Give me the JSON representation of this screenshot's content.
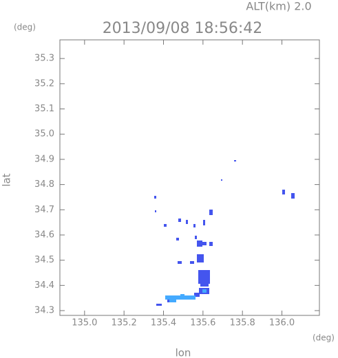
{
  "chart_data": {
    "type": "map",
    "title": "2013/09/08 18:56:42",
    "annotation": "ALT(km) 2.0",
    "x_label": "lon",
    "y_label": "lat",
    "x_unit": "(deg)",
    "y_unit": "(deg)",
    "xlim": [
      134.875,
      136.19
    ],
    "ylim": [
      34.281,
      35.374
    ],
    "xticks": [
      {
        "value": 135,
        "label": "135.0"
      },
      135.2,
      135.4,
      135.6,
      135.8,
      {
        "value": 136,
        "label": "136.0"
      }
    ],
    "yticks": [
      34.3,
      34.4,
      34.5,
      34.6,
      34.7,
      34.8,
      34.9,
      {
        "value": 35,
        "label": "35.0"
      },
      35.1,
      35.2,
      35.3
    ]
  }
}
